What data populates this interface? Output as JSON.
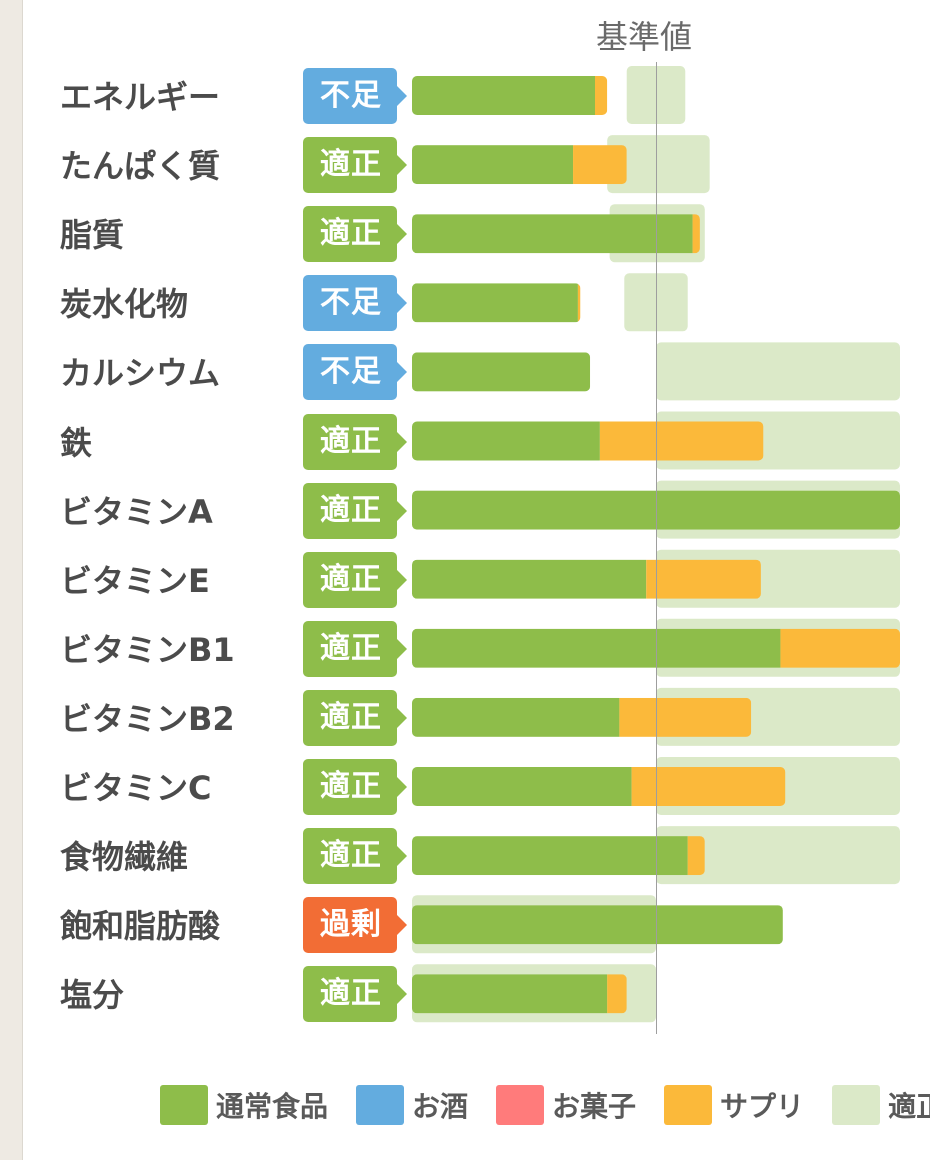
{
  "chart_data": {
    "type": "bar",
    "orientation": "horizontal",
    "stacked": true,
    "reference_label": "基準値",
    "categories": [
      "エネルギー",
      "たんぱく質",
      "脂質",
      "炭水化物",
      "カルシウム",
      "鉄",
      "ビタミンA",
      "ビタミンE",
      "ビタミンB1",
      "ビタミンB2",
      "ビタミンC",
      "食物繊維",
      "飽和脂肪酸",
      "塩分"
    ],
    "status": [
      "不足",
      "適正",
      "適正",
      "不足",
      "不足",
      "適正",
      "適正",
      "適正",
      "適正",
      "適正",
      "適正",
      "適正",
      "過剰",
      "適正"
    ],
    "status_type": [
      "low",
      "ok",
      "ok",
      "low",
      "low",
      "ok",
      "ok",
      "ok",
      "ok",
      "ok",
      "ok",
      "ok",
      "over",
      "ok"
    ],
    "series": [
      {
        "name": "通常食品",
        "color": "#8ebd4a",
        "values": [
          75,
          66,
          115,
          68,
          73,
          77,
          200,
          96,
          151,
          85,
          90,
          113,
          152,
          80
        ]
      },
      {
        "name": "お酒",
        "color": "#63acdf",
        "values": [
          0,
          0,
          0,
          0,
          0,
          0,
          0,
          0,
          0,
          0,
          0,
          0,
          0,
          0
        ]
      },
      {
        "name": "お菓子",
        "color": "#ff7b7b",
        "values": [
          0,
          0,
          0,
          0,
          0,
          0,
          0,
          0,
          0,
          0,
          0,
          0,
          0,
          0
        ]
      },
      {
        "name": "サプリ",
        "color": "#fbb93a",
        "values": [
          5,
          22,
          3,
          1,
          0,
          67,
          0,
          47,
          49,
          54,
          63,
          7,
          0,
          8
        ]
      }
    ],
    "optimal_range": {
      "name": "適正",
      "color": "#dbe9c8",
      "ranges": [
        [
          88,
          112
        ],
        [
          80,
          122
        ],
        [
          81,
          120
        ],
        [
          87,
          113
        ],
        [
          100,
          200
        ],
        [
          100,
          200
        ],
        [
          100,
          200
        ],
        [
          100,
          200
        ],
        [
          100,
          200
        ],
        [
          100,
          200
        ],
        [
          100,
          200
        ],
        [
          100,
          200
        ],
        [
          0,
          100
        ],
        [
          0,
          100
        ]
      ]
    },
    "reference_value": 100,
    "xlim": [
      0,
      200
    ]
  },
  "colors": {
    "ok": "#8ebd4a",
    "low": "#63acdf",
    "over": "#f26d35",
    "reference_line": "#9e9e9e"
  }
}
